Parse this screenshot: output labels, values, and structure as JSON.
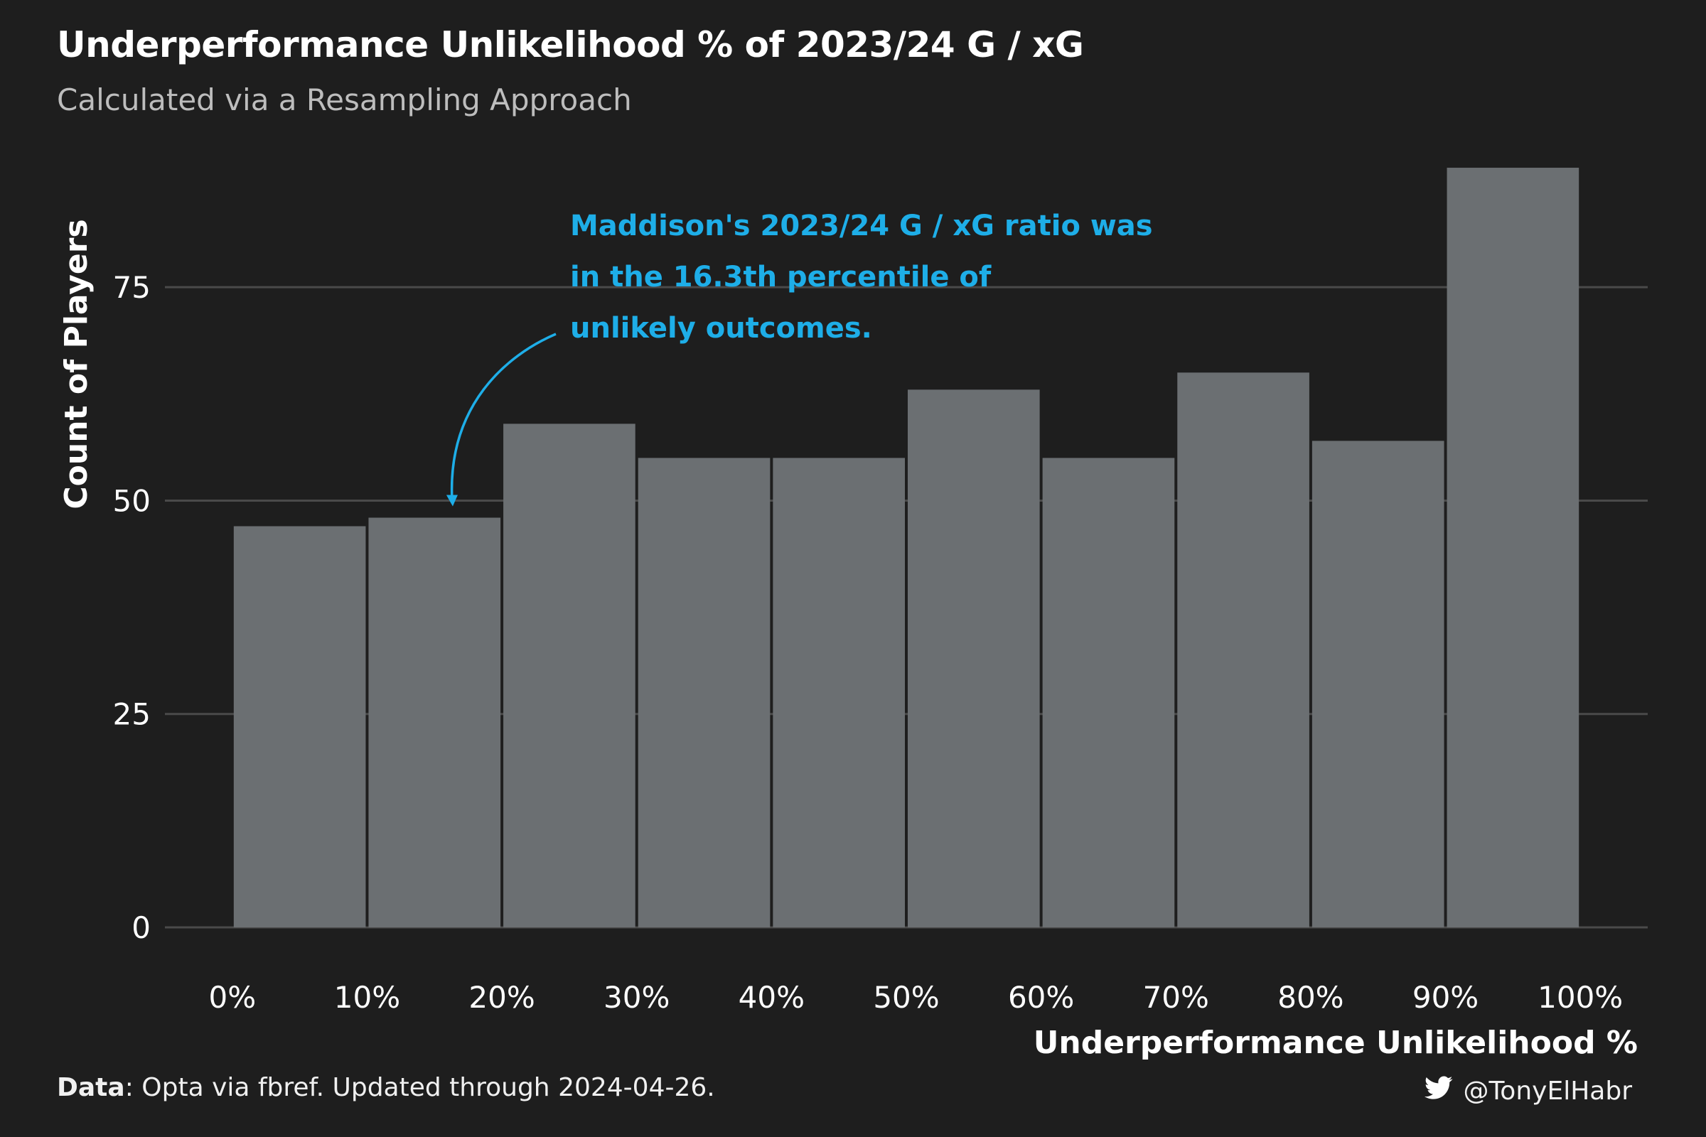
{
  "title": "Underperformance Unlikelihood % of 2023/24 G / xG",
  "subtitle": "Calculated via a Resampling Approach",
  "annotation": {
    "lines": [
      "Maddison's 2023/24 G / xG ratio was",
      "in the 16.3th percentile of",
      "unlikely outcomes."
    ],
    "target_x": 0.163,
    "target_y": 49.5,
    "color": "#1eaee8"
  },
  "footer": {
    "data_label": "Data",
    "data_text": ": Opta via fbref. Updated through 2024-04-26.",
    "handle": "@TonyElHabr",
    "icon": "twitter-bird-icon"
  },
  "colors": {
    "background": "#1e1e1e",
    "bar": "#6b6f72",
    "gridline": "#4a4a4a",
    "annotation": "#1eaee8",
    "text": "#ffffff",
    "subtitle": "#bdbdbd"
  },
  "chart_data": {
    "type": "bar",
    "xlabel": "Underperformance Unlikelihood %",
    "ylabel": "Count of Players",
    "bins": [
      {
        "start": 0.0,
        "end": 0.1,
        "value": 47
      },
      {
        "start": 0.1,
        "end": 0.2,
        "value": 48
      },
      {
        "start": 0.2,
        "end": 0.3,
        "value": 59
      },
      {
        "start": 0.3,
        "end": 0.4,
        "value": 55
      },
      {
        "start": 0.4,
        "end": 0.5,
        "value": 55
      },
      {
        "start": 0.5,
        "end": 0.6,
        "value": 63
      },
      {
        "start": 0.6,
        "end": 0.7,
        "value": 55
      },
      {
        "start": 0.7,
        "end": 0.8,
        "value": 65
      },
      {
        "start": 0.8,
        "end": 0.9,
        "value": 57
      },
      {
        "start": 0.9,
        "end": 1.0,
        "value": 89
      }
    ],
    "x_ticks": [
      {
        "value": 0.0,
        "label": "0%"
      },
      {
        "value": 0.1,
        "label": "10%"
      },
      {
        "value": 0.2,
        "label": "20%"
      },
      {
        "value": 0.3,
        "label": "30%"
      },
      {
        "value": 0.4,
        "label": "40%"
      },
      {
        "value": 0.5,
        "label": "50%"
      },
      {
        "value": 0.6,
        "label": "60%"
      },
      {
        "value": 0.7,
        "label": "70%"
      },
      {
        "value": 0.8,
        "label": "80%"
      },
      {
        "value": 0.9,
        "label": "90%"
      },
      {
        "value": 1.0,
        "label": "100%"
      }
    ],
    "y_ticks": [
      {
        "value": 0,
        "label": "0"
      },
      {
        "value": 25,
        "label": "25"
      },
      {
        "value": 50,
        "label": "50"
      },
      {
        "value": 75,
        "label": "75"
      }
    ],
    "xlim": [
      -0.05,
      1.05
    ],
    "ylim": [
      0,
      92
    ],
    "grid": "horizontal"
  }
}
